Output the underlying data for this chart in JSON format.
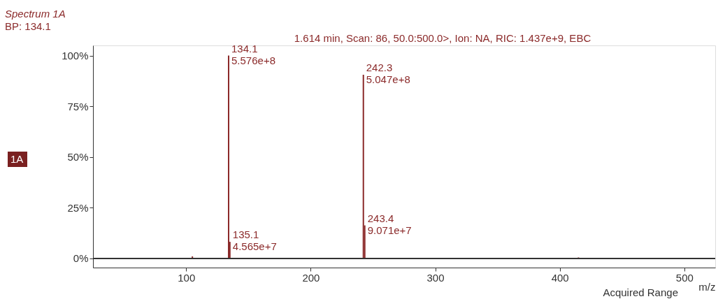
{
  "chart_data": {
    "type": "bar",
    "title": "Spectrum 1A",
    "subtitle": "BP: 134.1",
    "xlabel": "m/z",
    "x": [
      105,
      134.1,
      135.1,
      242.3,
      243.4,
      352,
      415
    ],
    "values": [
      1,
      100,
      8.2,
      90.5,
      16.3,
      0.3,
      0.5
    ],
    "color": "#8b2a2a",
    "xlim": [
      28,
      522
    ],
    "xticks": [
      100,
      200,
      300,
      400,
      500
    ],
    "ylim": [
      -4.5,
      105
    ],
    "yticks": [
      {
        "value": 0,
        "label": "0%"
      },
      {
        "value": 25,
        "label": "25%"
      },
      {
        "value": 50,
        "label": "50%"
      },
      {
        "value": 75,
        "label": "75%"
      },
      {
        "value": 100,
        "label": "100%"
      }
    ],
    "annotations": [
      "1.614 min, Scan: 86, 50.0:500.0>, Ion: NA, RIC: 1.437e+9, EBC",
      "Acquired Range",
      "1A",
      {
        "text": "134.1\n5.576e+8",
        "x": 134.1,
        "y": 100
      },
      {
        "text": "135.1\n4.565e+7",
        "x": 135.1,
        "y": 8.2
      },
      {
        "text": "242.3\n5.047e+8",
        "x": 242.3,
        "y": 90.5
      },
      {
        "text": "243.4\n9.071e+7",
        "x": 243.4,
        "y": 16.3
      }
    ],
    "ref_lines": [
      {
        "axis": "y",
        "value": 0,
        "color": "#333333"
      }
    ],
    "grid": false,
    "legend": false
  }
}
